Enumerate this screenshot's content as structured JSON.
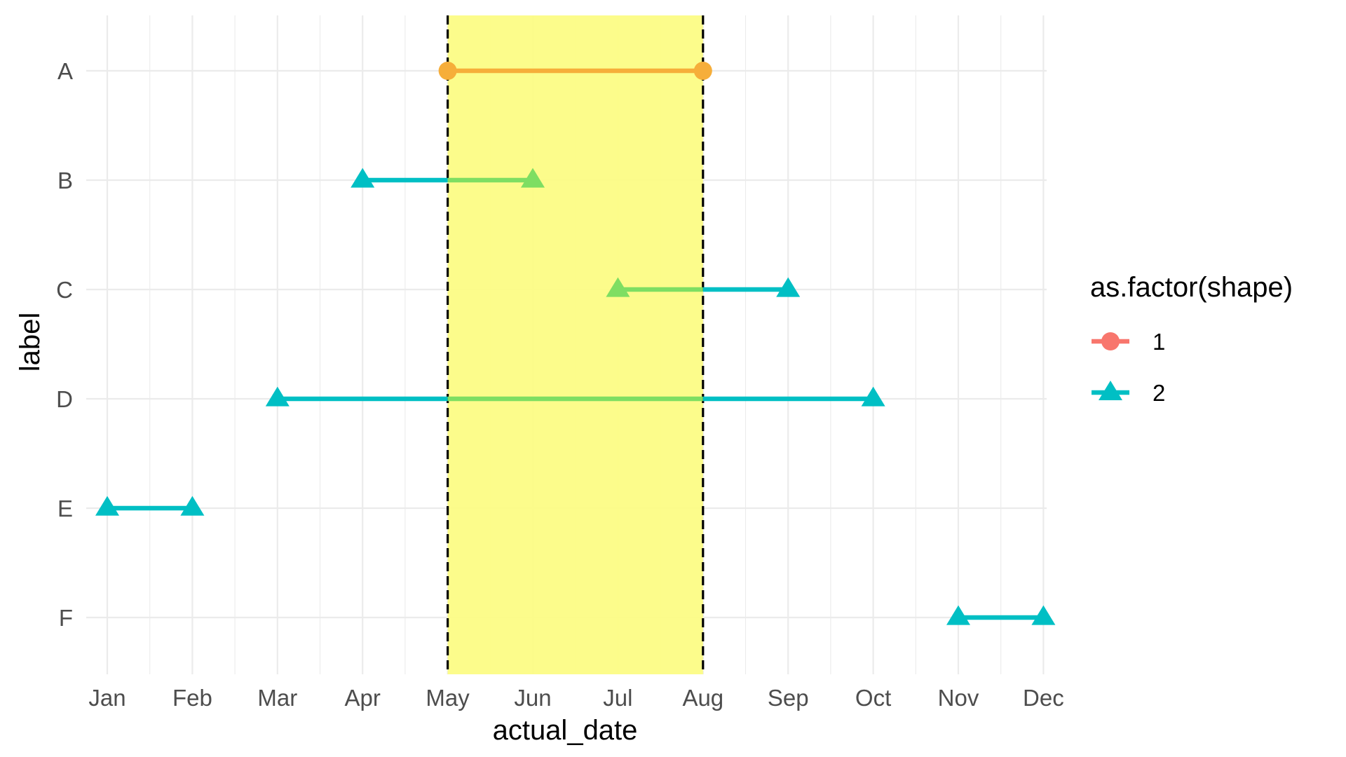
{
  "chart_data": {
    "type": "line",
    "title": "",
    "xlabel": "actual_date",
    "ylabel": "label",
    "x_ticks": [
      "Jan",
      "Feb",
      "Mar",
      "Apr",
      "May",
      "Jun",
      "Jul",
      "Aug",
      "Sep",
      "Oct",
      "Nov",
      "Dec"
    ],
    "x_range": [
      "Jan",
      "Dec"
    ],
    "y_categories": [
      "A",
      "B",
      "C",
      "D",
      "E",
      "F"
    ],
    "grid": true,
    "highlight_region": {
      "from": "May",
      "to": "Aug",
      "fill": "#FCFC85"
    },
    "reference_lines": [
      {
        "x": "May",
        "style": "dashed",
        "color": "#000000"
      },
      {
        "x": "Aug",
        "style": "dashed",
        "color": "#000000"
      }
    ],
    "series": [
      {
        "label": "A",
        "start": "May",
        "end": "Aug",
        "shape": "1"
      },
      {
        "label": "B",
        "start": "Apr",
        "end": "Jun",
        "shape": "2"
      },
      {
        "label": "C",
        "start": "Jul",
        "end": "Sep",
        "shape": "2"
      },
      {
        "label": "D",
        "start": "Mar",
        "end": "Oct",
        "shape": "2"
      },
      {
        "label": "E",
        "start": "Jan",
        "end": "Feb",
        "shape": "2"
      },
      {
        "label": "F",
        "start": "Nov",
        "end": "Dec",
        "shape": "2"
      }
    ],
    "legend": {
      "title": "as.factor(shape)",
      "position": "right",
      "items": [
        {
          "value": "1",
          "marker": "circle",
          "color": "#F8766D"
        },
        {
          "value": "2",
          "marker": "triangle",
          "color": "#00BFC4"
        }
      ]
    },
    "colors": {
      "shape_1": "#F8766D",
      "shape_2": "#00BFC4",
      "blend_1_in_region": "#F6AE3A",
      "blend_2_in_region": "#7EDE62",
      "grid": "#EBEBEB"
    }
  }
}
